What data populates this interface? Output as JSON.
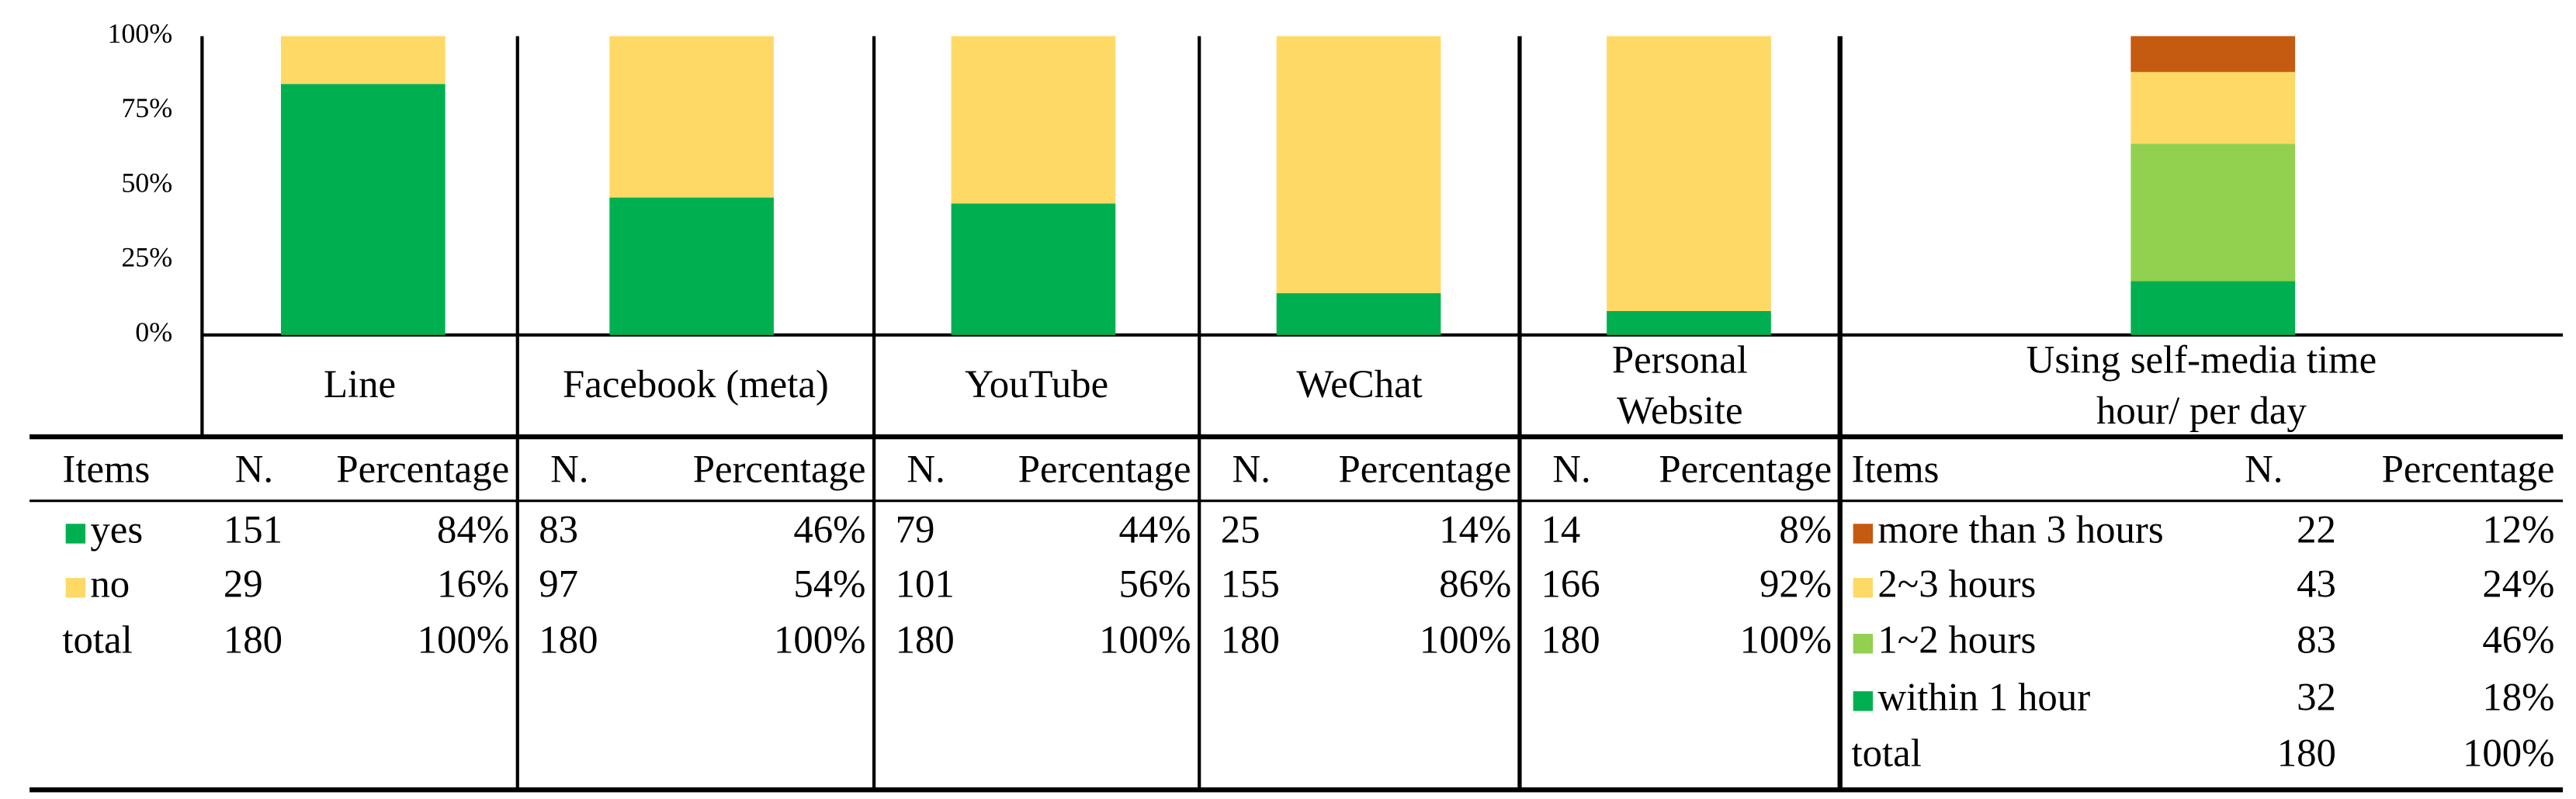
{
  "chart_data": [
    {
      "type": "stacked_bar",
      "categories": [
        "Line",
        "Facebook (meta)",
        "YouTube",
        "WeChat",
        "Personal Website"
      ],
      "series": [
        {
          "name": "yes",
          "color": "#00b050",
          "values": [
            84,
            46,
            44,
            14,
            8
          ]
        },
        {
          "name": "no",
          "color": "#ffd966",
          "values": [
            16,
            54,
            56,
            86,
            92
          ]
        }
      ],
      "ylim": [
        0,
        100
      ],
      "yticks": [
        {
          "value": 0,
          "label": "0%"
        },
        {
          "value": 25,
          "label": "25%"
        },
        {
          "value": 50,
          "label": "50%"
        },
        {
          "value": 75,
          "label": "75%"
        },
        {
          "value": 100,
          "label": "100%"
        }
      ]
    },
    {
      "type": "stacked_bar",
      "categories": [
        "Using self-media time hour/ per day"
      ],
      "series": [
        {
          "name": "within 1 hour",
          "color": "#00b050",
          "values": [
            18
          ]
        },
        {
          "name": "1~2 hours",
          "color": "#92d050",
          "values": [
            46
          ]
        },
        {
          "name": "2~3 hours",
          "color": "#ffd966",
          "values": [
            24
          ]
        },
        {
          "name": "more than 3 hours",
          "color": "#c55a11",
          "values": [
            12
          ]
        }
      ],
      "ylim": [
        0,
        100
      ]
    }
  ],
  "items": {
    "header": "Items",
    "total": "total"
  },
  "groups": [
    {
      "columns": [
        "N.",
        "Percentage"
      ],
      "rows": [
        [
          "151",
          "84%"
        ],
        [
          "29",
          "16%"
        ],
        [
          "180",
          "100%"
        ]
      ]
    },
    {
      "columns": [
        "N.",
        "Percentage"
      ],
      "rows": [
        [
          "83",
          "46%"
        ],
        [
          "97",
          "54%"
        ],
        [
          "180",
          "100%"
        ]
      ]
    },
    {
      "columns": [
        "N.",
        "Percentage"
      ],
      "rows": [
        [
          "79",
          "44%"
        ],
        [
          "101",
          "56%"
        ],
        [
          "180",
          "100%"
        ]
      ]
    },
    {
      "columns": [
        "N.",
        "Percentage"
      ],
      "rows": [
        [
          "25",
          "14%"
        ],
        [
          "155",
          "86%"
        ],
        [
          "180",
          "100%"
        ]
      ]
    },
    {
      "columns": [
        "N.",
        "Percentage"
      ],
      "rows": [
        [
          "14",
          "8%"
        ],
        [
          "166",
          "92%"
        ],
        [
          "180",
          "100%"
        ]
      ]
    }
  ],
  "time_table": {
    "columns": [
      "Items",
      "N.",
      "Percentage"
    ],
    "rows": [
      [
        "22",
        "12%"
      ],
      [
        "43",
        "24%"
      ],
      [
        "83",
        "46%"
      ],
      [
        "32",
        "18%"
      ]
    ],
    "total": [
      "total",
      "180",
      "100%"
    ]
  }
}
